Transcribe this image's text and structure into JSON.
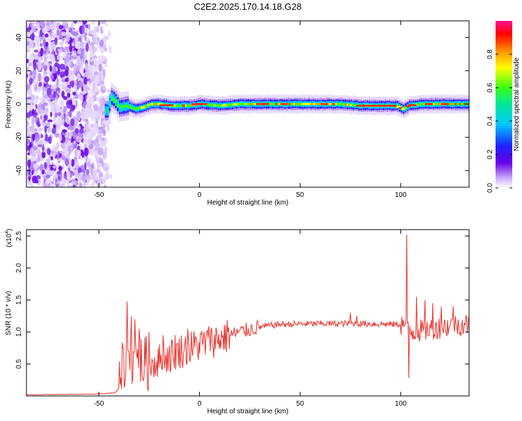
{
  "title": "C2E2.2025.170.14.18.G28",
  "chart_data": [
    {
      "type": "heatmap",
      "xlabel": "Height of straight line (km)",
      "ylabel": "Frequency (Hz)",
      "xlim": [
        -86,
        134
      ],
      "ylim": [
        -50,
        50
      ],
      "xticks": [
        -50,
        0,
        50,
        100
      ],
      "yticks": [
        -40,
        -20,
        0,
        20,
        40
      ],
      "colorbar": {
        "label": "Normalized spectral amplitude",
        "ticks": [
          "0.0",
          "0.2",
          "0.4",
          "0.6",
          "0.8"
        ],
        "range": [
          0,
          1
        ],
        "colors": [
          "#ffffff",
          "#c8a8f8",
          "#6a00e8",
          "#2020ff",
          "#00c8ff",
          "#00e89a",
          "#39ff14",
          "#ffff00",
          "#ff9000",
          "#ff0000",
          "#ff1493"
        ]
      },
      "description_free": true,
      "noise_region_km": [
        -86,
        -47
      ],
      "signal_center_hz": [
        [
          -46,
          -4
        ],
        [
          -44,
          4
        ],
        [
          -42,
          2
        ],
        [
          -40,
          -2
        ],
        [
          -36,
          -1
        ],
        [
          -32,
          -3
        ],
        [
          -28,
          -2
        ],
        [
          -24,
          0
        ],
        [
          -20,
          0
        ],
        [
          -15,
          -1
        ],
        [
          -10,
          -1
        ],
        [
          -5,
          -1
        ],
        [
          0,
          0
        ],
        [
          10,
          -1
        ],
        [
          20,
          0
        ],
        [
          40,
          0
        ],
        [
          60,
          0
        ],
        [
          70,
          0
        ],
        [
          80,
          -1
        ],
        [
          90,
          -1
        ],
        [
          98,
          -1
        ],
        [
          101,
          -3
        ],
        [
          104,
          -1
        ],
        [
          110,
          0
        ],
        [
          120,
          0
        ],
        [
          134,
          0
        ]
      ]
    },
    {
      "type": "line",
      "xlabel": "Height of straight line (km)",
      "ylabel": "SNR (10 * v/v)",
      "scale_label_base": "(x10",
      "scale_label_exp": "4",
      "scale_label_end": ")",
      "xlim": [
        -86,
        134
      ],
      "ylim": [
        0,
        2.6
      ],
      "xticks": [
        -50,
        0,
        50,
        100
      ],
      "yticks": [
        0.5,
        1.0,
        1.5,
        2.0,
        2.5
      ],
      "color": "#e8302a",
      "envelope": [
        [
          -86,
          0.02
        ],
        [
          -50,
          0.03
        ],
        [
          -42,
          0.05
        ],
        [
          -40,
          0.12
        ],
        [
          -38,
          0.45
        ],
        [
          -36,
          0.55
        ],
        [
          -34,
          0.6
        ],
        [
          -30,
          0.55
        ],
        [
          -26,
          0.5
        ],
        [
          -20,
          0.55
        ],
        [
          -10,
          0.7
        ],
        [
          0,
          0.8
        ],
        [
          10,
          0.9
        ],
        [
          20,
          1.0
        ],
        [
          30,
          1.08
        ],
        [
          40,
          1.12
        ],
        [
          60,
          1.13
        ],
        [
          80,
          1.13
        ],
        [
          96,
          1.12
        ],
        [
          102,
          1.12
        ],
        [
          106,
          1.0
        ],
        [
          115,
          1.05
        ],
        [
          125,
          1.1
        ],
        [
          134,
          1.12
        ]
      ],
      "spikes": [
        [
          -36,
          1.48
        ],
        [
          -34,
          1.25
        ],
        [
          -32,
          1.2
        ],
        [
          -30,
          1.05
        ],
        [
          -25,
          1.0
        ],
        [
          -18,
          0.95
        ],
        [
          -12,
          0.95
        ],
        [
          -6,
          1.05
        ],
        [
          5,
          1.02
        ],
        [
          14,
          1.0
        ],
        [
          75,
          1.3
        ],
        [
          78,
          1.25
        ],
        [
          103,
          2.52
        ],
        [
          104,
          0.28
        ],
        [
          108,
          1.55
        ],
        [
          112,
          1.5
        ],
        [
          116,
          1.45
        ],
        [
          120,
          1.4
        ],
        [
          126,
          1.4
        ]
      ]
    }
  ]
}
